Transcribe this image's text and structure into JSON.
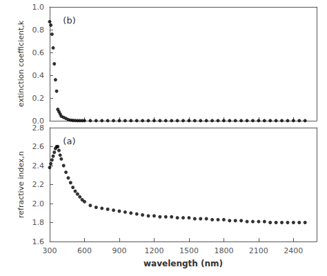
{
  "chart_data": [
    {
      "type": "scatter",
      "annotation": "(b)",
      "ylabel": "extinction coefficient,k",
      "x": [
        300,
        310,
        320,
        330,
        340,
        350,
        360,
        370,
        380,
        390,
        400,
        420,
        440,
        460,
        480,
        500,
        520,
        540,
        560,
        580,
        600,
        650,
        700,
        750,
        800,
        850,
        900,
        950,
        1000,
        1050,
        1100,
        1150,
        1200,
        1250,
        1300,
        1350,
        1400,
        1450,
        1500,
        1550,
        1600,
        1650,
        1700,
        1750,
        1800,
        1850,
        1900,
        1950,
        2000,
        2050,
        2100,
        2150,
        2200,
        2250,
        2300,
        2350,
        2400,
        2450,
        2500
      ],
      "values": [
        0.87,
        0.84,
        0.76,
        0.64,
        0.5,
        0.36,
        0.26,
        0.1,
        0.08,
        0.06,
        0.04,
        0.03,
        0.02,
        0.01,
        0.005,
        0.003,
        0.002,
        0.001,
        0.001,
        0.001,
        0.001,
        0.001,
        0.001,
        0.001,
        0.001,
        0.001,
        0.001,
        0.001,
        0.001,
        0.001,
        0.001,
        0.001,
        0.001,
        0.001,
        0.001,
        0.001,
        0.001,
        0.001,
        0.001,
        0.001,
        0.001,
        0.001,
        0.001,
        0.001,
        0.001,
        0.001,
        0.001,
        0.001,
        0.001,
        0.001,
        0.001,
        0.001,
        0.001,
        0.001,
        0.001,
        0.001,
        0.001,
        0.001,
        0.001
      ],
      "color": "#000000",
      "xlim": [
        300,
        2600
      ],
      "xticks": [
        300,
        600,
        900,
        1200,
        1500,
        1800,
        2100,
        2400
      ],
      "ylim": [
        0.0,
        1.0
      ],
      "yticks": [
        {
          "value": 0,
          "label": "0.0"
        },
        0.2,
        0.4,
        0.6,
        0.8,
        {
          "value": 1,
          "label": "1.0"
        }
      ],
      "tick_labels": "y",
      "grid": false
    },
    {
      "type": "scatter",
      "annotation": "(a)",
      "xlabel": "wavelength (nm)",
      "ylabel": "refractive index,n",
      "x": [
        300,
        310,
        320,
        330,
        340,
        350,
        360,
        370,
        380,
        390,
        400,
        420,
        440,
        460,
        480,
        500,
        520,
        540,
        560,
        580,
        600,
        650,
        700,
        750,
        800,
        850,
        900,
        950,
        1000,
        1050,
        1100,
        1150,
        1200,
        1250,
        1300,
        1350,
        1400,
        1450,
        1500,
        1550,
        1600,
        1650,
        1700,
        1750,
        1800,
        1850,
        1900,
        1950,
        2000,
        2050,
        2100,
        2150,
        2200,
        2250,
        2300,
        2350,
        2400,
        2450,
        2500
      ],
      "values": [
        2.38,
        2.42,
        2.46,
        2.5,
        2.54,
        2.58,
        2.6,
        2.6,
        2.56,
        2.51,
        2.47,
        2.4,
        2.33,
        2.27,
        2.22,
        2.17,
        2.13,
        2.1,
        2.07,
        2.04,
        2.02,
        1.98,
        1.96,
        1.95,
        1.94,
        1.93,
        1.92,
        1.91,
        1.9,
        1.89,
        1.88,
        1.87,
        1.87,
        1.86,
        1.86,
        1.86,
        1.85,
        1.85,
        1.85,
        1.84,
        1.84,
        1.84,
        1.83,
        1.83,
        1.83,
        1.82,
        1.82,
        1.82,
        1.81,
        1.81,
        1.81,
        1.81,
        1.8,
        1.8,
        1.8,
        1.8,
        1.8,
        1.8,
        1.8
      ],
      "color": "#000000",
      "xlim": [
        300,
        2600
      ],
      "xticks": [
        300,
        600,
        900,
        1200,
        1500,
        1800,
        2100,
        2400
      ],
      "ylim": [
        1.6,
        2.8
      ],
      "yticks": [
        1.6,
        1.8,
        {
          "value": 2,
          "label": "2.0"
        },
        2.2,
        2.4,
        2.6,
        2.8
      ],
      "grid": false
    }
  ]
}
